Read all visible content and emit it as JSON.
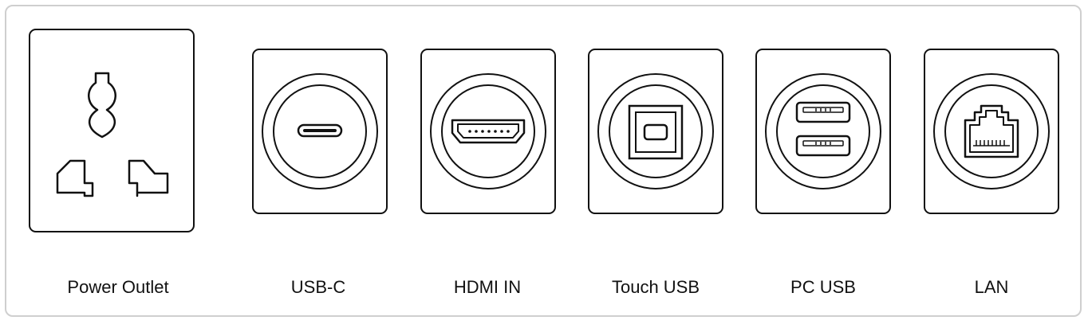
{
  "ports": [
    {
      "id": "power",
      "label": "Power Outlet",
      "icon": "universal-power-socket-icon"
    },
    {
      "id": "usbc",
      "label": "USB-C",
      "icon": "usb-c-port-icon"
    },
    {
      "id": "hdmi",
      "label": "HDMI IN",
      "icon": "hdmi-port-icon"
    },
    {
      "id": "touch",
      "label": "Touch USB",
      "icon": "usb-b-port-icon"
    },
    {
      "id": "pcusb",
      "label": "PC USB",
      "icon": "dual-usb-a-port-icon"
    },
    {
      "id": "lan",
      "label": "LAN",
      "icon": "rj45-lan-port-icon"
    }
  ]
}
